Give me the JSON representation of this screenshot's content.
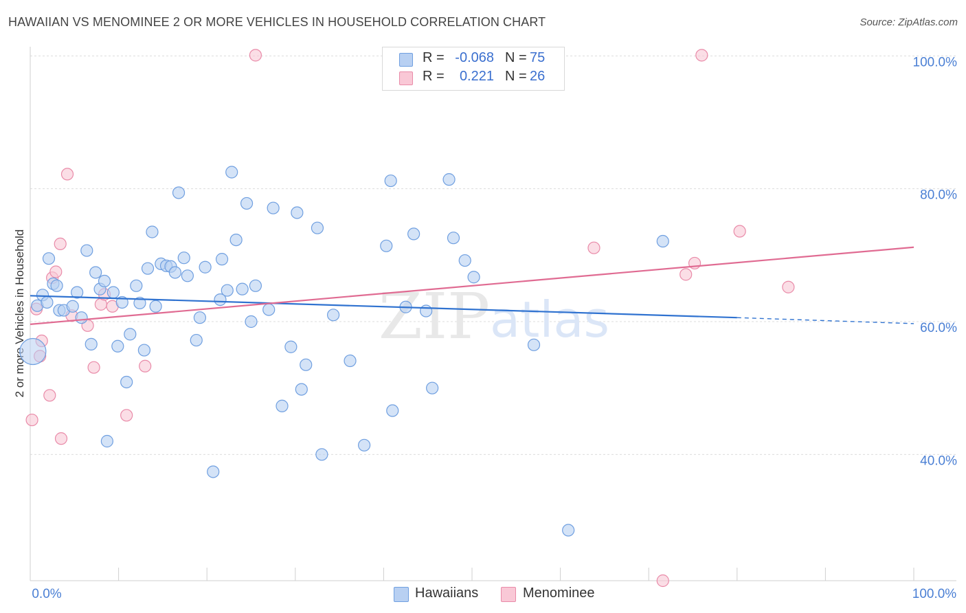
{
  "title": "HAWAIIAN VS MENOMINEE 2 OR MORE VEHICLES IN HOUSEHOLD CORRELATION CHART",
  "source": "Source: ZipAtlas.com",
  "watermark": {
    "zip": "ZIP",
    "atlas": "atlas"
  },
  "legend": {
    "rows": [
      {
        "r_label": "R =",
        "r_value": "-0.068",
        "n_label": "N =",
        "n_value": "75"
      },
      {
        "r_label": "R =",
        "r_value": "0.221",
        "n_label": "N =",
        "n_value": "26"
      }
    ]
  },
  "bottom_legend": {
    "hawaiians": "Hawaiians",
    "menominee": "Menominee"
  },
  "colors": {
    "hawaiians_fill": "#b8d0f2",
    "hawaiians_stroke": "#6f9fe0",
    "hawaiians_line": "#2f72d0",
    "menominee_fill": "#f9c8d6",
    "menominee_stroke": "#e98aa8",
    "menominee_line": "#e06b92",
    "tick_text": "#4a7fd4",
    "grid": "#dcdcdc"
  },
  "chart_data": {
    "type": "scatter",
    "title": "HAWAIIAN VS MENOMINEE 2 OR MORE VEHICLES IN HOUSEHOLD CORRELATION CHART",
    "xlabel": "",
    "ylabel": "2 or more Vehicles in Household",
    "xlim": [
      0,
      100
    ],
    "ylim": [
      21,
      102
    ],
    "x_tick_labels": [
      "0.0%",
      "100.0%"
    ],
    "y_ticks": [
      40,
      60,
      80,
      100
    ],
    "y_tick_labels": [
      "40.0%",
      "60.0%",
      "80.0%",
      "100.0%"
    ],
    "grid": true,
    "series": [
      {
        "name": "Hawaiians",
        "trend": {
          "x0": 0,
          "y0": 63.9,
          "x1": 80,
          "y1": 60.6,
          "dashed_to_x": 100,
          "dashed_to_y": 59.7
        },
        "points": [
          {
            "x": 0.3,
            "y": 55.5,
            "big": true
          },
          {
            "x": 0.8,
            "y": 62.4
          },
          {
            "x": 1.4,
            "y": 64.0
          },
          {
            "x": 1.9,
            "y": 62.9
          },
          {
            "x": 2.1,
            "y": 69.5
          },
          {
            "x": 2.6,
            "y": 65.7
          },
          {
            "x": 3.0,
            "y": 65.4
          },
          {
            "x": 3.3,
            "y": 61.7
          },
          {
            "x": 3.8,
            "y": 61.7
          },
          {
            "x": 4.8,
            "y": 62.3
          },
          {
            "x": 5.3,
            "y": 64.4
          },
          {
            "x": 5.8,
            "y": 60.6
          },
          {
            "x": 6.4,
            "y": 70.7
          },
          {
            "x": 6.9,
            "y": 56.6
          },
          {
            "x": 7.4,
            "y": 67.4
          },
          {
            "x": 7.9,
            "y": 64.9
          },
          {
            "x": 8.4,
            "y": 66.1
          },
          {
            "x": 8.7,
            "y": 42.0
          },
          {
            "x": 9.4,
            "y": 64.4
          },
          {
            "x": 9.9,
            "y": 56.3
          },
          {
            "x": 10.4,
            "y": 62.9
          },
          {
            "x": 10.9,
            "y": 50.9
          },
          {
            "x": 11.3,
            "y": 58.1
          },
          {
            "x": 12.0,
            "y": 65.4
          },
          {
            "x": 12.4,
            "y": 62.8
          },
          {
            "x": 12.9,
            "y": 55.7
          },
          {
            "x": 13.3,
            "y": 68.0
          },
          {
            "x": 13.8,
            "y": 73.5
          },
          {
            "x": 14.2,
            "y": 62.3
          },
          {
            "x": 14.8,
            "y": 68.7
          },
          {
            "x": 15.4,
            "y": 68.4
          },
          {
            "x": 15.9,
            "y": 68.3
          },
          {
            "x": 16.4,
            "y": 67.4
          },
          {
            "x": 16.8,
            "y": 79.4
          },
          {
            "x": 17.4,
            "y": 69.6
          },
          {
            "x": 17.8,
            "y": 66.9
          },
          {
            "x": 18.8,
            "y": 57.2
          },
          {
            "x": 19.2,
            "y": 60.6
          },
          {
            "x": 19.8,
            "y": 68.2
          },
          {
            "x": 20.7,
            "y": 37.4
          },
          {
            "x": 21.5,
            "y": 63.3
          },
          {
            "x": 21.7,
            "y": 69.4
          },
          {
            "x": 22.3,
            "y": 64.7
          },
          {
            "x": 22.8,
            "y": 82.5
          },
          {
            "x": 23.3,
            "y": 72.3
          },
          {
            "x": 24.0,
            "y": 64.9
          },
          {
            "x": 24.5,
            "y": 77.8
          },
          {
            "x": 25.0,
            "y": 60.0
          },
          {
            "x": 25.5,
            "y": 65.4
          },
          {
            "x": 27.0,
            "y": 61.8
          },
          {
            "x": 27.5,
            "y": 77.1
          },
          {
            "x": 28.5,
            "y": 47.3
          },
          {
            "x": 29.5,
            "y": 56.2
          },
          {
            "x": 30.2,
            "y": 76.4
          },
          {
            "x": 30.7,
            "y": 49.8
          },
          {
            "x": 31.2,
            "y": 53.5
          },
          {
            "x": 32.5,
            "y": 74.1
          },
          {
            "x": 33.0,
            "y": 40.0
          },
          {
            "x": 34.3,
            "y": 61.0
          },
          {
            "x": 36.2,
            "y": 54.1
          },
          {
            "x": 37.8,
            "y": 41.4
          },
          {
            "x": 40.3,
            "y": 71.4
          },
          {
            "x": 40.8,
            "y": 81.2
          },
          {
            "x": 41.0,
            "y": 46.6
          },
          {
            "x": 42.5,
            "y": 62.2
          },
          {
            "x": 43.4,
            "y": 73.2
          },
          {
            "x": 44.8,
            "y": 61.6
          },
          {
            "x": 45.5,
            "y": 50.0
          },
          {
            "x": 47.4,
            "y": 81.4
          },
          {
            "x": 47.9,
            "y": 72.6
          },
          {
            "x": 49.2,
            "y": 69.2
          },
          {
            "x": 50.2,
            "y": 66.7
          },
          {
            "x": 57.0,
            "y": 56.5
          },
          {
            "x": 60.9,
            "y": 28.6
          },
          {
            "x": 71.6,
            "y": 72.1
          }
        ]
      },
      {
        "name": "Menominee",
        "trend": {
          "x0": 0,
          "y0": 59.6,
          "x1": 100,
          "y1": 71.2
        },
        "points": [
          {
            "x": 0.2,
            "y": 45.2
          },
          {
            "x": 0.7,
            "y": 61.9
          },
          {
            "x": 1.3,
            "y": 57.1
          },
          {
            "x": 1.1,
            "y": 54.8
          },
          {
            "x": 2.2,
            "y": 48.9
          },
          {
            "x": 2.5,
            "y": 66.6
          },
          {
            "x": 2.9,
            "y": 67.5
          },
          {
            "x": 3.4,
            "y": 71.7
          },
          {
            "x": 3.5,
            "y": 42.4
          },
          {
            "x": 4.2,
            "y": 82.2
          },
          {
            "x": 4.7,
            "y": 60.9
          },
          {
            "x": 6.5,
            "y": 59.4
          },
          {
            "x": 7.2,
            "y": 53.1
          },
          {
            "x": 8.0,
            "y": 62.6
          },
          {
            "x": 8.4,
            "y": 64.1
          },
          {
            "x": 9.3,
            "y": 62.3
          },
          {
            "x": 10.9,
            "y": 45.9
          },
          {
            "x": 13.0,
            "y": 53.3
          },
          {
            "x": 25.5,
            "y": 100.1
          },
          {
            "x": 63.8,
            "y": 71.1
          },
          {
            "x": 71.6,
            "y": 21.0
          },
          {
            "x": 74.2,
            "y": 67.1
          },
          {
            "x": 75.2,
            "y": 68.8
          },
          {
            "x": 76.0,
            "y": 100.1
          },
          {
            "x": 80.3,
            "y": 73.6
          },
          {
            "x": 85.8,
            "y": 65.2
          }
        ]
      }
    ]
  }
}
